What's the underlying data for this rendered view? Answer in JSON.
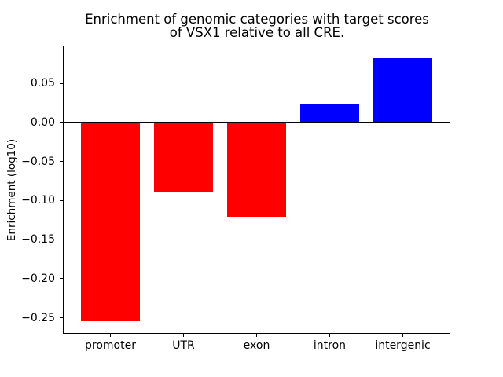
{
  "title": {
    "line1": "Enrichment of genomic categories with target scores",
    "line2": "of VSX1 relative to all CRE."
  },
  "y_axis": {
    "label": "Enrichment (log10)"
  },
  "chart_data": {
    "type": "bar",
    "title": "Enrichment of genomic categories with target scores of VSX1 relative to all CRE.",
    "categories": [
      "promoter",
      "UTR",
      "exon",
      "intron",
      "intergenic"
    ],
    "values": [
      -0.254,
      -0.089,
      -0.121,
      0.023,
      0.082
    ],
    "colors": [
      "#ff0000",
      "#ff0000",
      "#ff0000",
      "#0000ff",
      "#0000ff"
    ],
    "negative_color": "#ff0000",
    "positive_color": "#0000ff",
    "xlabel": "",
    "ylabel": "Enrichment (log10)",
    "ylim": [
      -0.2695,
      0.0975
    ],
    "xlim": [
      -0.64,
      4.64
    ],
    "yticks": [
      0.05,
      0,
      -0.05,
      -0.1,
      -0.15,
      -0.2,
      -0.25
    ],
    "ytick_labels": [
      "0.05",
      "0.00",
      "−0.05",
      "−0.10",
      "−0.15",
      "−0.20",
      "−0.25"
    ],
    "bar_width": 0.8,
    "zero_line": true,
    "grid": false,
    "legend": null
  }
}
